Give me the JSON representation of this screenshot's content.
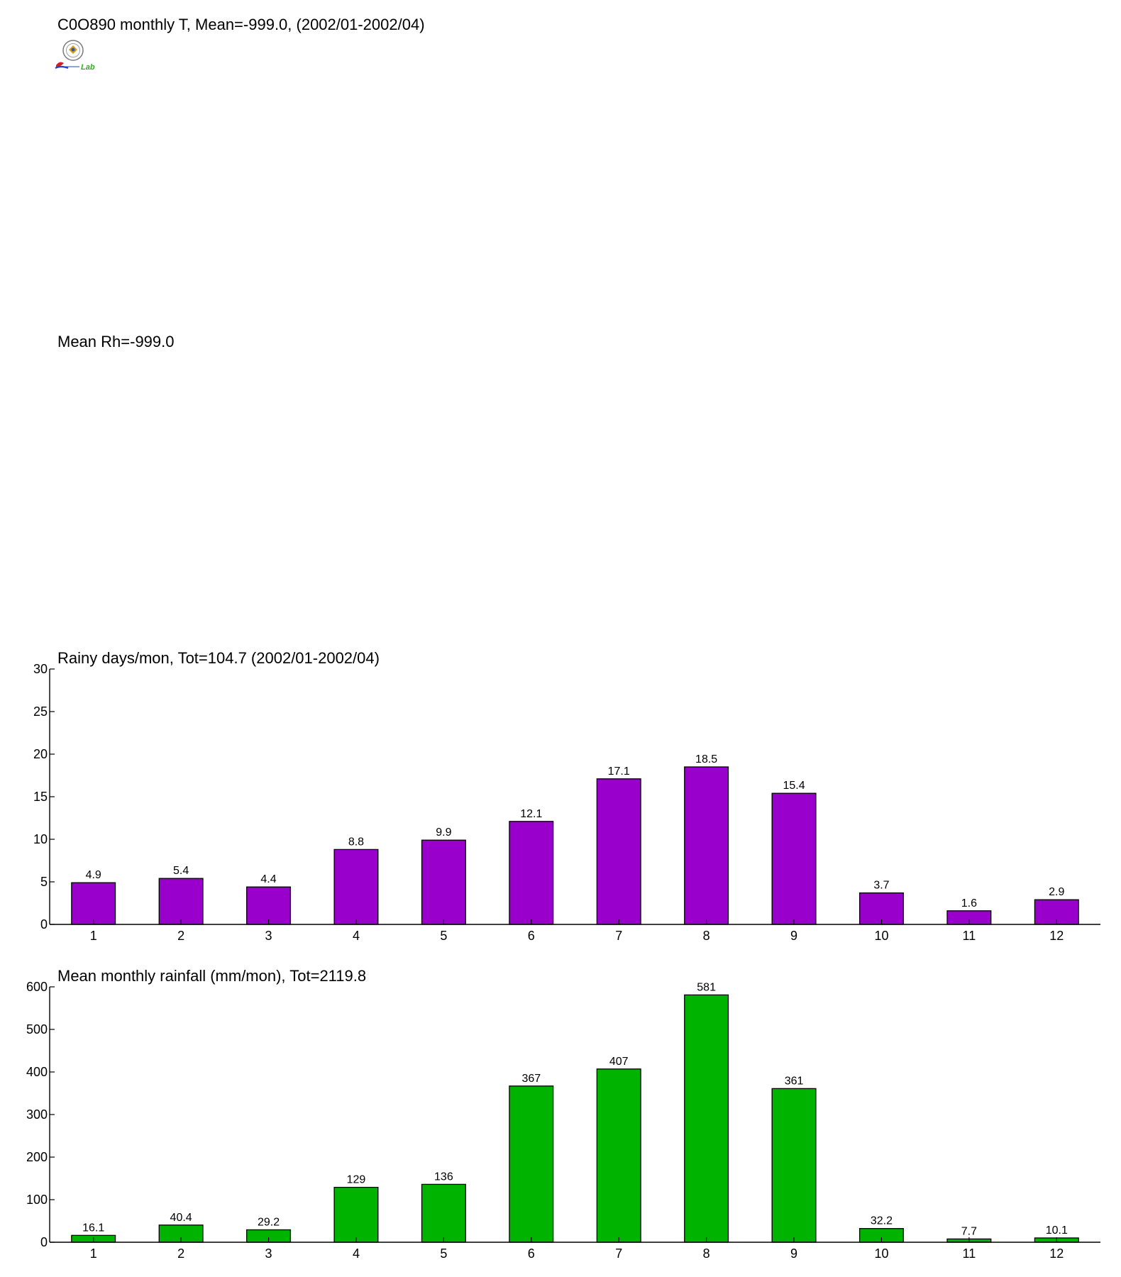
{
  "header": {
    "title_t": "C0O890 monthly T, Mean=-999.0, (2002/01-2002/04)",
    "title_rh": "Mean Rh=-999.0"
  },
  "logo": {
    "icon": "weather-bureau-logo-icon",
    "text": "Lab"
  },
  "chart_data": [
    {
      "type": "bar",
      "title": "Rainy days/mon, Tot=104.7 (2002/01-2002/04)",
      "categories": [
        "1",
        "2",
        "3",
        "4",
        "5",
        "6",
        "7",
        "8",
        "9",
        "10",
        "11",
        "12"
      ],
      "values": [
        4.9,
        5.4,
        4.4,
        8.8,
        9.9,
        12.1,
        17.1,
        18.5,
        15.4,
        3.7,
        1.6,
        2.9
      ],
      "labels": [
        "4.9",
        "5.4",
        "4.4",
        "8.8",
        "9.9",
        "12.1",
        "17.1",
        "18.5",
        "15.4",
        "3.7",
        "1.6",
        "2.9"
      ],
      "ylim": [
        0,
        30
      ],
      "yticks": [
        0,
        5,
        10,
        15,
        20,
        25,
        30
      ],
      "color": "#9900cc",
      "grid": false
    },
    {
      "type": "bar",
      "title": "Mean monthly rainfall (mm/mon), Tot=2119.8",
      "categories": [
        "1",
        "2",
        "3",
        "4",
        "5",
        "6",
        "7",
        "8",
        "9",
        "10",
        "11",
        "12"
      ],
      "values": [
        16.1,
        40.4,
        29.2,
        129,
        136,
        367,
        407,
        581,
        361,
        32.2,
        7.7,
        10.1
      ],
      "labels": [
        "16.1",
        "40.4",
        "29.2",
        "129",
        "136",
        "367",
        "407",
        "581",
        "361",
        "32.2",
        "7.7",
        "10.1"
      ],
      "ylim": [
        0,
        600
      ],
      "yticks": [
        0,
        100,
        200,
        300,
        400,
        500,
        600
      ],
      "color": "#00b300",
      "grid": false
    }
  ]
}
